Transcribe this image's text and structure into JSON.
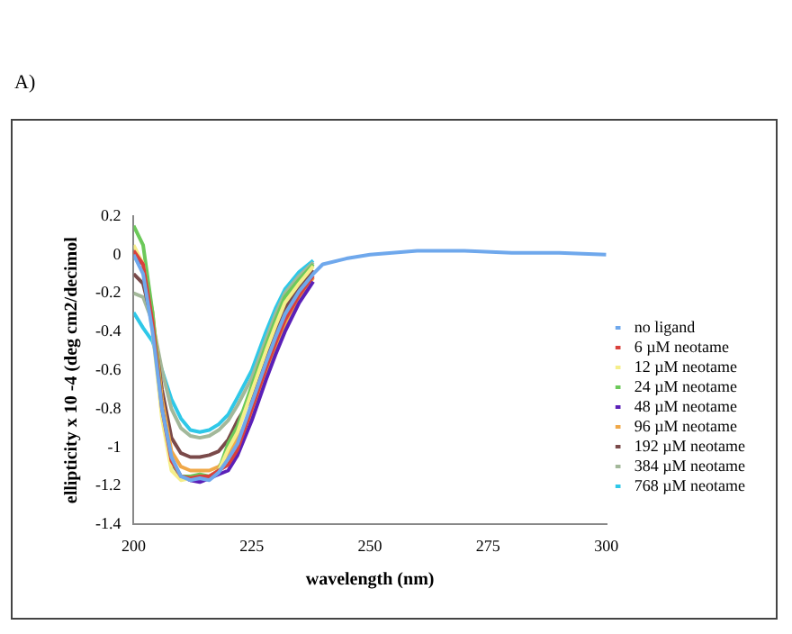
{
  "chart_data": {
    "type": "line",
    "xlabel": "wavelength (nm)",
    "ylabel": "ellipticity x 10 -4 (deg cm2/decimol",
    "annotations": [
      "A)"
    ],
    "x": [
      200,
      202,
      204,
      206,
      208,
      210,
      212,
      214,
      216,
      218,
      220,
      222,
      225,
      228,
      230,
      232,
      235,
      238,
      240,
      245,
      250,
      260,
      270,
      280,
      290,
      300
    ],
    "xlim": [
      200,
      300
    ],
    "xticks": [
      200,
      225,
      250,
      275,
      300
    ],
    "ylim": [
      -1.4,
      0.2
    ],
    "yticks": [
      -1.4,
      -1.2,
      -1,
      -0.8,
      -0.6,
      -0.4,
      -0.2,
      0,
      0.2
    ],
    "grid": false,
    "legend": "right",
    "marker": "none",
    "line_style": "solid",
    "series": [
      {
        "name": "no ligand",
        "color": "#6fa8ec",
        "values": [
          0,
          -0.1,
          -0.4,
          -0.8,
          -1.05,
          -1.15,
          -1.17,
          -1.16,
          -1.17,
          -1.13,
          -1.06,
          -0.98,
          -0.77,
          -0.56,
          -0.43,
          -0.31,
          -0.19,
          -0.1,
          -0.05,
          -0.02,
          0,
          0.02,
          0.02,
          0.01,
          0.01,
          0
        ]
      },
      {
        "name": "6 µM neotame",
        "color": "#d9413c",
        "values": [
          0.02,
          -0.05,
          -0.35,
          -0.8,
          -1.07,
          -1.15,
          -1.16,
          -1.15,
          -1.15,
          -1.12,
          -1.09,
          -1.01,
          -0.8,
          -0.59,
          -0.46,
          -0.34,
          -0.21,
          -0.11,
          null,
          null,
          null,
          null,
          null,
          null,
          null,
          null
        ]
      },
      {
        "name": "12 µM neotame",
        "color": "#f5ee8a",
        "values": [
          0.05,
          -0.05,
          -0.4,
          -0.85,
          -1.12,
          -1.17,
          -1.16,
          -1.16,
          -1.15,
          -1.12,
          -1.01,
          -0.92,
          -0.71,
          -0.5,
          -0.37,
          -0.25,
          -0.15,
          -0.06,
          null,
          null,
          null,
          null,
          null,
          null,
          null,
          null
        ]
      },
      {
        "name": "24 µM neotame",
        "color": "#6cc95a",
        "values": [
          0.15,
          0.05,
          -0.3,
          -0.8,
          -1.08,
          -1.15,
          -1.15,
          -1.14,
          -1.15,
          -1.12,
          -0.98,
          -0.89,
          -0.68,
          -0.47,
          -0.34,
          -0.22,
          -0.13,
          -0.05,
          null,
          null,
          null,
          null,
          null,
          null,
          null,
          null
        ]
      },
      {
        "name": "48 µM neotame",
        "color": "#5b20b8",
        "values": [
          0,
          -0.05,
          -0.35,
          -0.8,
          -1.08,
          -1.15,
          -1.17,
          -1.18,
          -1.16,
          -1.14,
          -1.12,
          -1.04,
          -0.86,
          -0.65,
          -0.52,
          -0.4,
          -0.25,
          -0.14,
          null,
          null,
          null,
          null,
          null,
          null,
          null,
          null
        ]
      },
      {
        "name": "96 µM neotame",
        "color": "#f0a848",
        "values": [
          0,
          -0.05,
          -0.3,
          -0.75,
          -1.02,
          -1.1,
          -1.12,
          -1.12,
          -1.12,
          -1.1,
          -1.04,
          -0.95,
          -0.83,
          -0.62,
          -0.49,
          -0.37,
          -0.23,
          -0.12,
          null,
          null,
          null,
          null,
          null,
          null,
          null,
          null
        ]
      },
      {
        "name": "192 µM neotame",
        "color": "#7a4a4a",
        "values": [
          -0.1,
          -0.15,
          -0.35,
          -0.7,
          -0.95,
          -1.03,
          -1.05,
          -1.05,
          -1.04,
          -1.02,
          -0.96,
          -0.86,
          -0.74,
          -0.53,
          -0.4,
          -0.28,
          -0.17,
          -0.08,
          null,
          null,
          null,
          null,
          null,
          null,
          null,
          null
        ]
      },
      {
        "name": "384 µM neotame",
        "color": "#a3b89a",
        "values": [
          -0.2,
          -0.22,
          -0.35,
          -0.6,
          -0.8,
          -0.9,
          -0.94,
          -0.95,
          -0.94,
          -0.91,
          -0.86,
          -0.78,
          -0.64,
          -0.44,
          -0.31,
          -0.2,
          -0.11,
          -0.04,
          null,
          null,
          null,
          null,
          null,
          null,
          null,
          null
        ]
      },
      {
        "name": "768 µM neotame",
        "color": "#2fc8e8",
        "values": [
          -0.3,
          -0.38,
          -0.45,
          -0.6,
          -0.75,
          -0.85,
          -0.91,
          -0.92,
          -0.91,
          -0.88,
          -0.83,
          -0.74,
          -0.6,
          -0.4,
          -0.28,
          -0.18,
          -0.09,
          -0.03,
          null,
          null,
          null,
          null,
          null,
          null,
          null,
          null
        ]
      }
    ]
  }
}
